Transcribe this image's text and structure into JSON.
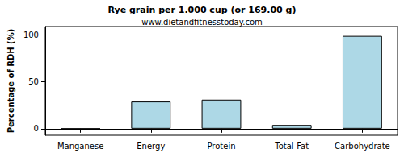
{
  "chart_data": {
    "type": "bar",
    "title": "Rye grain per 1.000 cup (or 169.00 g)",
    "subtitle": "www.dietandfitnesstoday.com",
    "y_label": "Percentage of RDH (%)",
    "categories": [
      "Manganese",
      "Energy",
      "Protein",
      "Total-Fat",
      "Carbohydrate"
    ],
    "values": [
      0,
      29,
      31,
      4,
      99
    ],
    "color": "#add8e6",
    "ylim": [
      -7,
      109
    ],
    "yticks": [
      0,
      50,
      100
    ],
    "grid": false
  }
}
